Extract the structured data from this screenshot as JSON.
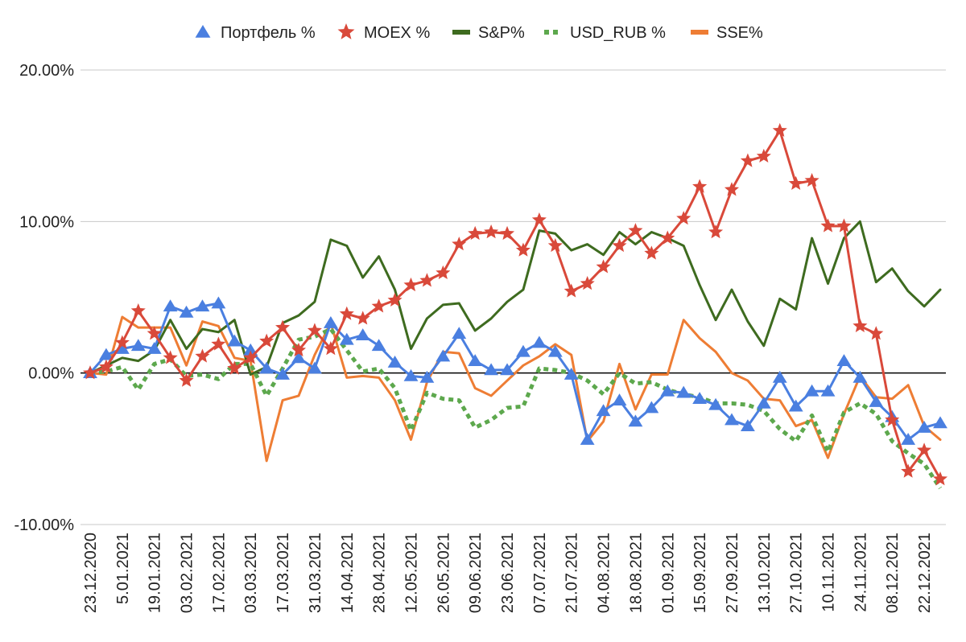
{
  "chart_data": {
    "type": "line",
    "title": "",
    "xlabel": "",
    "ylabel": "",
    "ylim": [
      -10,
      20
    ],
    "y_ticks": [
      -10,
      0,
      10,
      20
    ],
    "y_tick_format": "percent_2dp",
    "grid": "horizontal",
    "legend_position": "top",
    "x": [
      "23.12.2020",
      "29.12.2020",
      "05.01.2021",
      "12.01.2021",
      "19.01.2021",
      "26.01.2021",
      "03.02.2021",
      "10.02.2021",
      "17.02.2021",
      "24.02.2021",
      "03.03.2021",
      "10.03.2021",
      "17.03.2021",
      "24.03.2021",
      "31.03.2021",
      "07.04.2021",
      "14.04.2021",
      "21.04.2021",
      "28.04.2021",
      "05.05.2021",
      "12.05.2021",
      "19.05.2021",
      "26.05.2021",
      "02.06.2021",
      "09.06.2021",
      "16.06.2021",
      "23.06.2021",
      "30.06.2021",
      "07.07.2021",
      "14.07.2021",
      "21.07.2021",
      "28.07.2021",
      "04.08.2021",
      "11.08.2021",
      "18.08.2021",
      "25.08.2021",
      "01.09.2021",
      "08.09.2021",
      "15.09.2021",
      "22.09.2021",
      "27.09.2021",
      "06.10.2021",
      "13.10.2021",
      "20.10.2021",
      "27.10.2021",
      "03.11.2021",
      "10.11.2021",
      "17.11.2021",
      "24.11.2021",
      "01.12.2021",
      "08.12.2021",
      "15.12.2021",
      "22.12.2021",
      "29.12.2021"
    ],
    "x_tick_labels": [
      "23.12.2020",
      "5.01.2021",
      "19.01.2021",
      "03.02.2021",
      "17.02.2021",
      "03.03.2021",
      "17.03.2021",
      "31.03.2021",
      "14.04.2021",
      "28.04.2021",
      "12.05.2021",
      "26.05.2021",
      "09.06.2021",
      "23.06.2021",
      "07.07.2021",
      "21.07.2021",
      "04.08.2021",
      "18.08.2021",
      "01.09.2021",
      "15.09.2021",
      "27.09.2021",
      "13.10.2021",
      "27.10.2021",
      "10.11.2021",
      "24.11.2021",
      "08.12.2021",
      "22.12.2021"
    ],
    "series": [
      {
        "name": "Портфель %",
        "color": "#4a7fe0",
        "marker": "triangle",
        "dash": "solid",
        "values": [
          0,
          1.2,
          1.6,
          1.8,
          1.6,
          4.4,
          4.0,
          4.4,
          4.6,
          2.1,
          1.5,
          0.3,
          -0.1,
          1.0,
          0.3,
          3.3,
          2.2,
          2.5,
          1.8,
          0.7,
          -0.2,
          -0.3,
          1.1,
          2.6,
          0.8,
          0.2,
          0.2,
          1.4,
          2.0,
          1.4,
          -0.1,
          -4.4,
          -2.5,
          -1.8,
          -3.2,
          -2.3,
          -1.2,
          -1.3,
          -1.7,
          -2.1,
          -3.1,
          -3.5,
          -2.0,
          -0.3,
          -2.2,
          -1.2,
          -1.2,
          0.8,
          -0.3,
          -1.9,
          -2.9,
          -4.4,
          -3.6,
          -3.3
        ]
      },
      {
        "name": "MOEX %",
        "color": "#d9493a",
        "marker": "star",
        "dash": "solid",
        "values": [
          0,
          0.4,
          2.0,
          4.1,
          2.6,
          1.0,
          -0.5,
          1.1,
          1.9,
          0.3,
          1.0,
          2.1,
          3.0,
          1.5,
          2.8,
          1.6,
          3.9,
          3.6,
          4.4,
          4.8,
          5.8,
          6.1,
          6.6,
          8.5,
          9.2,
          9.3,
          9.2,
          8.1,
          10.1,
          8.4,
          5.4,
          5.9,
          7.0,
          8.4,
          9.4,
          7.9,
          8.9,
          10.2,
          12.3,
          9.3,
          12.1,
          14.0,
          14.3,
          16.0,
          12.5,
          12.7,
          9.7,
          9.7,
          3.1,
          2.6,
          -3.1,
          -6.5,
          -5.1,
          -7.0
        ]
      },
      {
        "name": "S&P%",
        "color": "#3e6b1f",
        "marker": "none",
        "dash": "solid",
        "values": [
          0,
          0.5,
          1.0,
          0.8,
          1.5,
          3.5,
          1.6,
          2.9,
          2.7,
          3.5,
          -0.1,
          0.4,
          3.3,
          3.8,
          4.7,
          8.8,
          8.4,
          6.3,
          7.7,
          5.5,
          1.6,
          3.6,
          4.5,
          4.6,
          2.8,
          3.6,
          4.7,
          5.5,
          9.4,
          9.2,
          8.1,
          8.5,
          7.8,
          9.3,
          8.5,
          9.3,
          8.9,
          8.4,
          5.8,
          3.5,
          5.5,
          3.4,
          1.8,
          4.9,
          4.2,
          8.9,
          5.9,
          8.9,
          10.0,
          6.0,
          6.9,
          5.4,
          4.4,
          5.5
        ]
      },
      {
        "name": "USD_RUB %",
        "color": "#5da84d",
        "marker": "none",
        "dash": "dotted",
        "values": [
          0,
          0.1,
          0.4,
          -1.1,
          0.6,
          0.9,
          -0.2,
          -0.1,
          -0.4,
          0.6,
          0.6,
          -1.5,
          0.3,
          2.2,
          2.4,
          2.9,
          1.5,
          0.1,
          0.3,
          -1.0,
          -3.8,
          -1.3,
          -1.7,
          -1.8,
          -3.6,
          -3.1,
          -2.3,
          -2.2,
          0.3,
          0.2,
          0.0,
          -0.5,
          -1.4,
          0.0,
          -0.7,
          -0.6,
          -1.1,
          -1.4,
          -1.6,
          -2.0,
          -2.0,
          -2.1,
          -2.5,
          -3.7,
          -4.5,
          -2.8,
          -5.2,
          -2.6,
          -2.0,
          -2.7,
          -4.5,
          -5.3,
          -6.0,
          -7.6
        ]
      },
      {
        "name": "SSE%",
        "color": "#ee7d34",
        "marker": "none",
        "dash": "solid",
        "values": [
          0,
          -0.1,
          3.7,
          3.0,
          3.0,
          3.0,
          0.5,
          3.4,
          3.1,
          1.0,
          0.8,
          -5.8,
          -1.8,
          -1.5,
          1.2,
          3.3,
          -0.3,
          -0.2,
          -0.3,
          -1.8,
          -4.4,
          -0.6,
          1.4,
          1.3,
          -1.0,
          -1.5,
          -0.5,
          0.5,
          1.1,
          1.9,
          1.2,
          -4.5,
          -3.2,
          0.6,
          -2.4,
          -0.1,
          -0.1,
          3.5,
          2.3,
          1.4,
          0.0,
          -0.5,
          -1.7,
          -1.8,
          -3.5,
          -3.1,
          -5.6,
          -2.7,
          -0.2,
          -1.6,
          -1.7,
          -0.8,
          -3.5,
          -4.4
        ]
      }
    ]
  }
}
